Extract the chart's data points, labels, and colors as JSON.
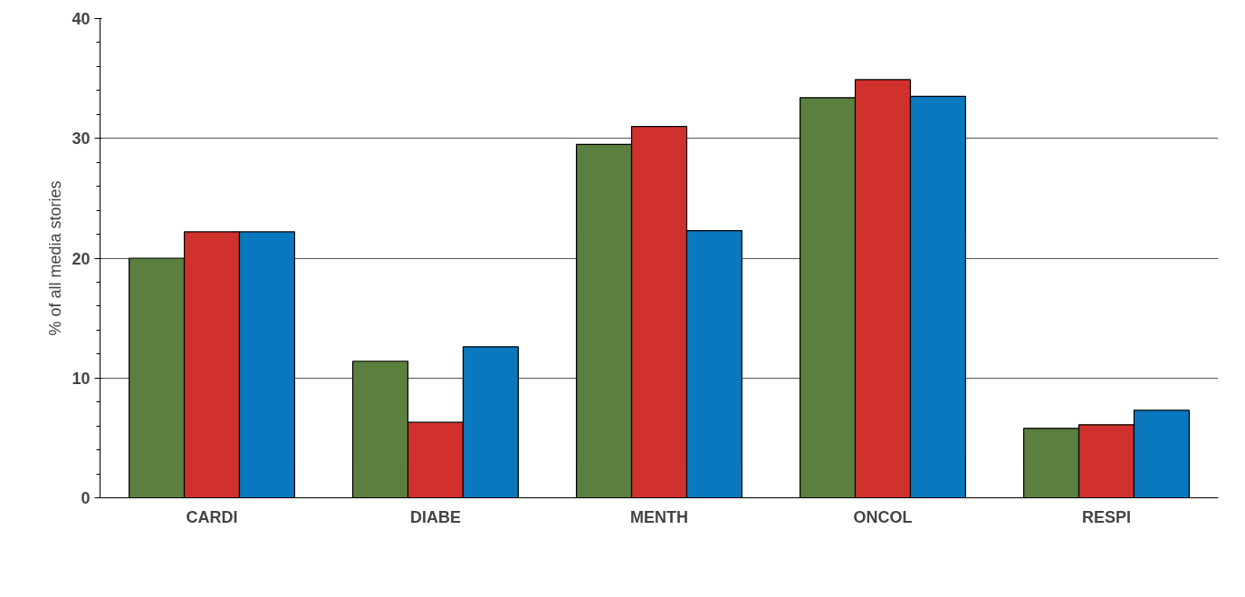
{
  "chart_data": {
    "type": "bar",
    "ylabel": "% of all media stories",
    "categories": [
      "CARDI",
      "DIABE",
      "MENTH",
      "ONCOL",
      "RESPI"
    ],
    "series": [
      {
        "color": "#5b7f3e",
        "values": [
          20.0,
          11.4,
          29.5,
          33.4,
          5.8
        ]
      },
      {
        "color": "#d0312d",
        "values": [
          22.2,
          6.3,
          31.0,
          34.9,
          6.1
        ]
      },
      {
        "color": "#0a78bf",
        "values": [
          22.2,
          12.6,
          22.3,
          33.5,
          7.3
        ]
      }
    ],
    "ylim": [
      0,
      40
    ],
    "yticks": [
      0,
      10,
      20,
      30,
      40
    ],
    "grid": "y"
  }
}
